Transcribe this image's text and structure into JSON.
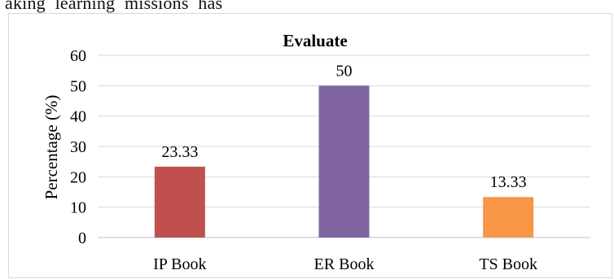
{
  "page": {
    "snippet_text": "aking  learning  missions  has"
  },
  "chart_data": {
    "type": "bar",
    "title": "Evaluate",
    "ylabel": "Percentage (%)",
    "xlabel": "",
    "categories": [
      "IP Book",
      "ER Book",
      "TS Book"
    ],
    "values": [
      23.33,
      50,
      13.33
    ],
    "value_labels": [
      "23.33",
      "50",
      "13.33"
    ],
    "bar_colors": [
      "#c0504d",
      "#8064a2",
      "#f79646"
    ],
    "ylim": [
      0,
      60
    ],
    "yticks": [
      "0",
      "10",
      "20",
      "30",
      "40",
      "50",
      "60"
    ],
    "grid": true,
    "legend": "none"
  }
}
